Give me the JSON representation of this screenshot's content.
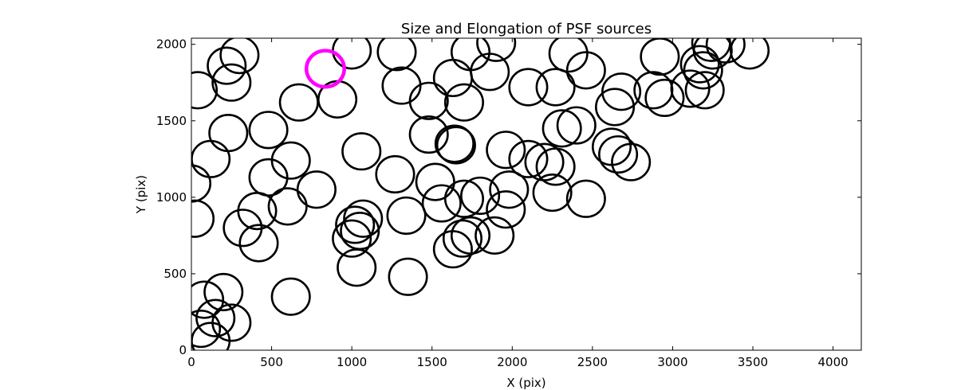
{
  "chart_data": {
    "type": "scatter",
    "title": "Size and Elongation of PSF sources",
    "xlabel": "X (pix)",
    "ylabel": "Y (pix)",
    "xlim": [
      0,
      4176
    ],
    "ylim": [
      0,
      2040
    ],
    "xticks": [
      0,
      500,
      1000,
      1500,
      2000,
      2500,
      3000,
      3500,
      4000
    ],
    "yticks": [
      0,
      500,
      1000,
      1500,
      2000
    ],
    "radius_units": 118,
    "colors": {
      "normal": "#000000",
      "highlight": "#ff00ff"
    },
    "highlighted": {
      "x": 835,
      "y": 1840
    },
    "points": [
      [
        835,
        1840
      ],
      [
        120,
        60
      ],
      [
        60,
        140
      ],
      [
        150,
        210
      ],
      [
        250,
        180
      ],
      [
        200,
        380
      ],
      [
        80,
        330
      ],
      [
        620,
        350
      ],
      [
        1030,
        540
      ],
      [
        1350,
        480
      ],
      [
        1000,
        730
      ],
      [
        1050,
        780
      ],
      [
        1070,
        860
      ],
      [
        1020,
        820
      ],
      [
        420,
        700
      ],
      [
        320,
        800
      ],
      [
        410,
        910
      ],
      [
        600,
        940
      ],
      [
        780,
        1050
      ],
      [
        20,
        860
      ],
      [
        0,
        1090
      ],
      [
        120,
        1250
      ],
      [
        480,
        1130
      ],
      [
        620,
        1240
      ],
      [
        230,
        1420
      ],
      [
        480,
        1440
      ],
      [
        910,
        1640
      ],
      [
        670,
        1620
      ],
      [
        250,
        1750
      ],
      [
        40,
        1700
      ],
      [
        220,
        1860
      ],
      [
        300,
        1930
      ],
      [
        1000,
        1960
      ],
      [
        1280,
        1950
      ],
      [
        1310,
        1730
      ],
      [
        1480,
        1630
      ],
      [
        1630,
        1780
      ],
      [
        1700,
        1620
      ],
      [
        1740,
        1950
      ],
      [
        1860,
        1820
      ],
      [
        1900,
        2010
      ],
      [
        2100,
        1720
      ],
      [
        2270,
        1720
      ],
      [
        2350,
        1940
      ],
      [
        2460,
        1830
      ],
      [
        2310,
        1450
      ],
      [
        2400,
        1470
      ],
      [
        2640,
        1590
      ],
      [
        2680,
        1690
      ],
      [
        2920,
        1920
      ],
      [
        2880,
        1700
      ],
      [
        2950,
        1650
      ],
      [
        3110,
        1710
      ],
      [
        3190,
        1830
      ],
      [
        3200,
        1700
      ],
      [
        3170,
        1870
      ],
      [
        3250,
        1960
      ],
      [
        3330,
        2000
      ],
      [
        3480,
        1960
      ],
      [
        3240,
        2010
      ],
      [
        1060,
        1300
      ],
      [
        1270,
        1150
      ],
      [
        1480,
        1410
      ],
      [
        1640,
        1350
      ],
      [
        1650,
        1340
      ],
      [
        1520,
        1100
      ],
      [
        1560,
        960
      ],
      [
        1700,
        990
      ],
      [
        1800,
        1010
      ],
      [
        1960,
        920
      ],
      [
        1980,
        1050
      ],
      [
        1960,
        1310
      ],
      [
        2100,
        1250
      ],
      [
        2200,
        1230
      ],
      [
        2270,
        1200
      ],
      [
        2250,
        1030
      ],
      [
        2460,
        990
      ],
      [
        2620,
        1330
      ],
      [
        2660,
        1280
      ],
      [
        2740,
        1230
      ],
      [
        1340,
        880
      ],
      [
        1630,
        660
      ],
      [
        1690,
        730
      ],
      [
        1740,
        750
      ],
      [
        1890,
        750
      ]
    ]
  }
}
